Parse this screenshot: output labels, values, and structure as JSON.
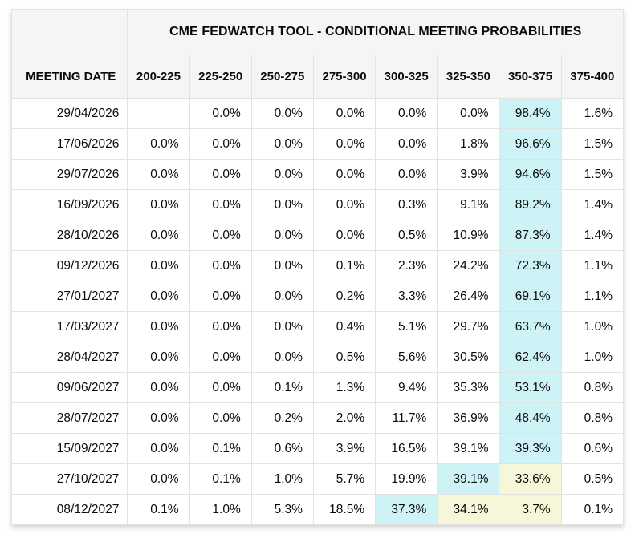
{
  "table": {
    "title": "CME FEDWATCH TOOL - CONDITIONAL MEETING PROBABILITIES"
  },
  "colors": {
    "highlight_cyan": "#cdf3f6",
    "highlight_yellow": "#f6f6d8",
    "header_bg": "#f5f5f4",
    "border": "#e2e2e2",
    "text": "#0a0a0a"
  },
  "chart_data": {
    "type": "table",
    "title": "CME FEDWATCH TOOL - CONDITIONAL MEETING PROBABILITIES",
    "columns": [
      "MEETING DATE",
      "200-225",
      "225-250",
      "250-275",
      "275-300",
      "300-325",
      "325-350",
      "350-375",
      "375-400"
    ],
    "rows": [
      {
        "date": "29/04/2026",
        "values": [
          "",
          "0.0%",
          "0.0%",
          "0.0%",
          "0.0%",
          "0.0%",
          "98.4%",
          "1.6%"
        ],
        "highlights": [
          null,
          null,
          null,
          null,
          null,
          null,
          "cyan",
          null
        ]
      },
      {
        "date": "17/06/2026",
        "values": [
          "0.0%",
          "0.0%",
          "0.0%",
          "0.0%",
          "0.0%",
          "1.8%",
          "96.6%",
          "1.5%"
        ],
        "highlights": [
          null,
          null,
          null,
          null,
          null,
          null,
          "cyan",
          null
        ]
      },
      {
        "date": "29/07/2026",
        "values": [
          "0.0%",
          "0.0%",
          "0.0%",
          "0.0%",
          "0.0%",
          "3.9%",
          "94.6%",
          "1.5%"
        ],
        "highlights": [
          null,
          null,
          null,
          null,
          null,
          null,
          "cyan",
          null
        ]
      },
      {
        "date": "16/09/2026",
        "values": [
          "0.0%",
          "0.0%",
          "0.0%",
          "0.0%",
          "0.3%",
          "9.1%",
          "89.2%",
          "1.4%"
        ],
        "highlights": [
          null,
          null,
          null,
          null,
          null,
          null,
          "cyan",
          null
        ]
      },
      {
        "date": "28/10/2026",
        "values": [
          "0.0%",
          "0.0%",
          "0.0%",
          "0.0%",
          "0.5%",
          "10.9%",
          "87.3%",
          "1.4%"
        ],
        "highlights": [
          null,
          null,
          null,
          null,
          null,
          null,
          "cyan",
          null
        ]
      },
      {
        "date": "09/12/2026",
        "values": [
          "0.0%",
          "0.0%",
          "0.0%",
          "0.1%",
          "2.3%",
          "24.2%",
          "72.3%",
          "1.1%"
        ],
        "highlights": [
          null,
          null,
          null,
          null,
          null,
          null,
          "cyan",
          null
        ]
      },
      {
        "date": "27/01/2027",
        "values": [
          "0.0%",
          "0.0%",
          "0.0%",
          "0.2%",
          "3.3%",
          "26.4%",
          "69.1%",
          "1.1%"
        ],
        "highlights": [
          null,
          null,
          null,
          null,
          null,
          null,
          "cyan",
          null
        ]
      },
      {
        "date": "17/03/2027",
        "values": [
          "0.0%",
          "0.0%",
          "0.0%",
          "0.4%",
          "5.1%",
          "29.7%",
          "63.7%",
          "1.0%"
        ],
        "highlights": [
          null,
          null,
          null,
          null,
          null,
          null,
          "cyan",
          null
        ]
      },
      {
        "date": "28/04/2027",
        "values": [
          "0.0%",
          "0.0%",
          "0.0%",
          "0.5%",
          "5.6%",
          "30.5%",
          "62.4%",
          "1.0%"
        ],
        "highlights": [
          null,
          null,
          null,
          null,
          null,
          null,
          "cyan",
          null
        ]
      },
      {
        "date": "09/06/2027",
        "values": [
          "0.0%",
          "0.0%",
          "0.1%",
          "1.3%",
          "9.4%",
          "35.3%",
          "53.1%",
          "0.8%"
        ],
        "highlights": [
          null,
          null,
          null,
          null,
          null,
          null,
          "cyan",
          null
        ]
      },
      {
        "date": "28/07/2027",
        "values": [
          "0.0%",
          "0.0%",
          "0.2%",
          "2.0%",
          "11.7%",
          "36.9%",
          "48.4%",
          "0.8%"
        ],
        "highlights": [
          null,
          null,
          null,
          null,
          null,
          null,
          "cyan",
          null
        ]
      },
      {
        "date": "15/09/2027",
        "values": [
          "0.0%",
          "0.1%",
          "0.6%",
          "3.9%",
          "16.5%",
          "39.1%",
          "39.3%",
          "0.6%"
        ],
        "highlights": [
          null,
          null,
          null,
          null,
          null,
          null,
          "cyan",
          null
        ]
      },
      {
        "date": "27/10/2027",
        "values": [
          "0.0%",
          "0.1%",
          "1.0%",
          "5.7%",
          "19.9%",
          "39.1%",
          "33.6%",
          "0.5%"
        ],
        "highlights": [
          null,
          null,
          null,
          null,
          null,
          "cyan",
          "yellow",
          null
        ]
      },
      {
        "date": "08/12/2027",
        "values": [
          "0.1%",
          "1.0%",
          "5.3%",
          "18.5%",
          "37.3%",
          "34.1%",
          "3.7%",
          "0.1%"
        ],
        "highlights": [
          null,
          null,
          null,
          null,
          "cyan",
          "yellow",
          "yellow",
          null
        ]
      }
    ]
  }
}
